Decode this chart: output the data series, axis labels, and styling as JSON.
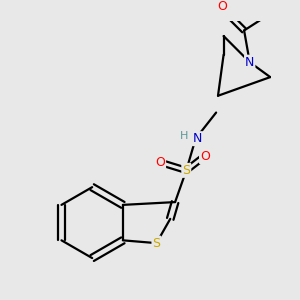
{
  "bg_color": "#e8e8e8",
  "atom_colors": {
    "C": "#000000",
    "N": "#0000cc",
    "O": "#ff0000",
    "S_thio": "#ccaa00",
    "S_sulfo": "#ccaa00",
    "H": "#5a9a9a"
  },
  "line_color": "#000000",
  "line_width": 1.6
}
